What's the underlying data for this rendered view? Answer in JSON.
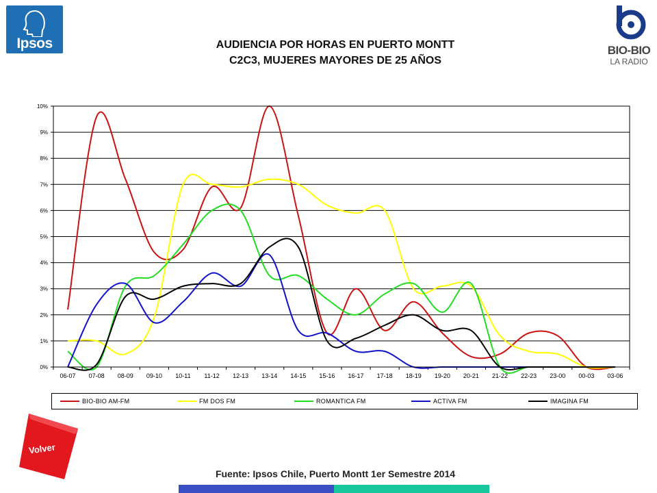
{
  "header": {
    "brand_left": "Ipsos",
    "title_line1": "AUDIENCIA POR HORAS EN PUERTO MONTT",
    "title_line2": "C2C3, MUJERES MAYORES DE 25 AÑOS",
    "brand_right_line1": "BIO-BIO",
    "brand_right_line2": "LA RADIO"
  },
  "footer": {
    "volver_label": "Volver",
    "source": "Fuente: Ipsos Chile, Puerto Montt 1er Semestre 2014"
  },
  "colors": {
    "ipsos_blue": "#1f6fb4",
    "volver_red": "#e3171e",
    "band_blue": "#3a4fc4",
    "band_green": "#18c79b"
  },
  "chart_data": {
    "type": "line",
    "title": "",
    "xlabel": "",
    "ylabel": "",
    "ylim": [
      0,
      10
    ],
    "y_ticks": [
      "0%",
      "1%",
      "2%",
      "3%",
      "4%",
      "5%",
      "6%",
      "7%",
      "8%",
      "9%",
      "10%"
    ],
    "grid": true,
    "legend_position": "bottom",
    "categories": [
      "06-07",
      "07-08",
      "08-09",
      "09-10",
      "10-11",
      "11-12",
      "12-13",
      "13-14",
      "14-15",
      "15-16",
      "16-17",
      "17-18",
      "18-19",
      "19-20",
      "20-21",
      "21-22",
      "22-23",
      "23-00",
      "00-03",
      "03-06"
    ],
    "series": [
      {
        "name": "BIO-BIO AM-FM",
        "color": "#cc1111",
        "values": [
          2.2,
          9.6,
          7.2,
          4.4,
          4.5,
          6.9,
          6.1,
          10.0,
          5.8,
          1.3,
          3.0,
          1.4,
          2.5,
          1.3,
          0.4,
          0.5,
          1.3,
          1.2,
          0.0,
          0.0
        ]
      },
      {
        "name": "FM DOS FM",
        "color": "#ffff00",
        "values": [
          1.0,
          1.0,
          0.5,
          1.9,
          7.0,
          7.0,
          6.9,
          7.2,
          7.0,
          6.2,
          5.9,
          6.0,
          3.0,
          3.1,
          3.1,
          1.2,
          0.6,
          0.5,
          0.0,
          0.0
        ]
      },
      {
        "name": "ROMANTICA FM",
        "color": "#22dd22",
        "values": [
          0.6,
          0.0,
          3.1,
          3.5,
          4.7,
          6.0,
          6.0,
          3.5,
          3.5,
          2.6,
          2.0,
          2.8,
          3.2,
          2.1,
          3.2,
          0.0,
          0.0,
          0.0,
          0.0,
          0.0
        ]
      },
      {
        "name": "ACTIVA FM",
        "color": "#1111cc",
        "values": [
          0.0,
          2.4,
          3.2,
          1.7,
          2.5,
          3.6,
          3.1,
          4.3,
          1.4,
          1.3,
          0.6,
          0.6,
          0.0,
          0.0,
          0.0,
          0.0,
          0.0,
          0.0,
          0.0,
          0.0
        ]
      },
      {
        "name": "IMAGINA FM",
        "color": "#000000",
        "values": [
          0.0,
          0.1,
          2.7,
          2.6,
          3.1,
          3.2,
          3.2,
          4.6,
          4.6,
          1.0,
          1.1,
          1.6,
          2.0,
          1.4,
          1.4,
          0.0,
          0.0,
          0.0,
          0.0,
          0.0
        ]
      }
    ]
  }
}
